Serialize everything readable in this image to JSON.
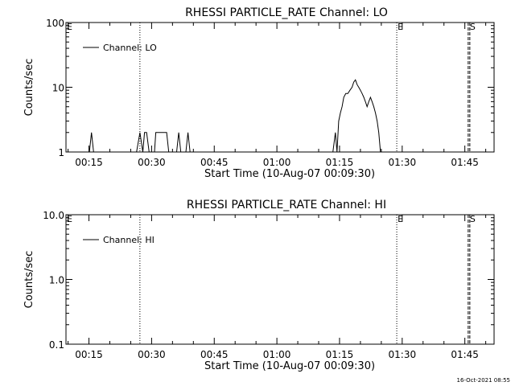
{
  "footer_timestamp": "16-Oct-2021 08:55",
  "chart_data": [
    {
      "type": "line",
      "title": "RHESSI PARTICLE_RATE Channel: LO",
      "xlabel": "Start Time (10-Aug-07 00:09:30)",
      "ylabel": "Counts/sec",
      "yscale": "log",
      "ylim": [
        1,
        100
      ],
      "yticks": [
        1,
        10,
        100
      ],
      "yticklabels": [
        "1",
        "10",
        "100"
      ],
      "xlim_minutes": [
        9.5,
        112
      ],
      "xticks": [
        15,
        30,
        45,
        60,
        75,
        90,
        105
      ],
      "xticklabels": [
        "00:15",
        "00:30",
        "00:45",
        "01:00",
        "01:15",
        "01:30",
        "01:45"
      ],
      "legend": {
        "label": "Channel: LO",
        "position": "top-left"
      },
      "markers": [
        {
          "label": "E",
          "minute": 9.5,
          "style": "none"
        },
        {
          "label": "",
          "minute": 27.2,
          "style": "dotted"
        },
        {
          "label": "E",
          "minute": 88.7,
          "style": "dotted"
        },
        {
          "label": "S",
          "minute": 106.0,
          "style": "dashed"
        }
      ],
      "series": [
        {
          "name": "Channel: LO",
          "x": [
            15.1,
            15.6,
            16.1,
            26.4,
            27.2,
            27.9,
            28.3,
            28.8,
            29.4,
            30.7,
            31.0,
            31.6,
            33.6,
            34.1,
            34.5,
            36.0,
            36.5,
            37.0,
            38.2,
            38.7,
            39.2,
            73.4,
            74.0,
            74.4,
            74.8,
            75.2,
            75.6,
            76.0,
            76.5,
            77.0,
            77.5,
            78.0,
            78.4,
            78.8,
            79.2,
            79.6,
            80.0,
            80.4,
            80.8,
            81.2,
            81.6,
            82.0,
            82.4,
            82.8,
            83.2,
            83.6,
            84.0,
            84.4,
            84.8
          ],
          "y": [
            1,
            2,
            1,
            1,
            2,
            1,
            2,
            2,
            1,
            1,
            2,
            2,
            2,
            1,
            1,
            1,
            2,
            1,
            1,
            2,
            1,
            1,
            2,
            1,
            3,
            4,
            5,
            7,
            8,
            8,
            9,
            10,
            12,
            13,
            11,
            10,
            9,
            8,
            7,
            6,
            5,
            6,
            7,
            6,
            5,
            4,
            3,
            2,
            1
          ]
        }
      ]
    },
    {
      "type": "line",
      "title": "RHESSI PARTICLE_RATE Channel: HI",
      "xlabel": "Start Time (10-Aug-07 00:09:30)",
      "ylabel": "Counts/sec",
      "yscale": "log",
      "ylim": [
        0.1,
        10
      ],
      "yticks": [
        0.1,
        1,
        10
      ],
      "yticklabels": [
        "0.1",
        "1.0",
        "10.0"
      ],
      "xlim_minutes": [
        9.5,
        112
      ],
      "xticks": [
        15,
        30,
        45,
        60,
        75,
        90,
        105
      ],
      "xticklabels": [
        "00:15",
        "00:30",
        "00:45",
        "01:00",
        "01:15",
        "01:30",
        "01:45"
      ],
      "legend": {
        "label": "Channel: HI",
        "position": "top-left"
      },
      "markers": [
        {
          "label": "E",
          "minute": 9.5,
          "style": "none"
        },
        {
          "label": "",
          "minute": 27.2,
          "style": "dotted"
        },
        {
          "label": "E",
          "minute": 88.7,
          "style": "dotted"
        },
        {
          "label": "S",
          "minute": 106.0,
          "style": "dashed"
        }
      ],
      "series": [
        {
          "name": "Channel: HI",
          "x": [],
          "y": []
        }
      ]
    }
  ]
}
